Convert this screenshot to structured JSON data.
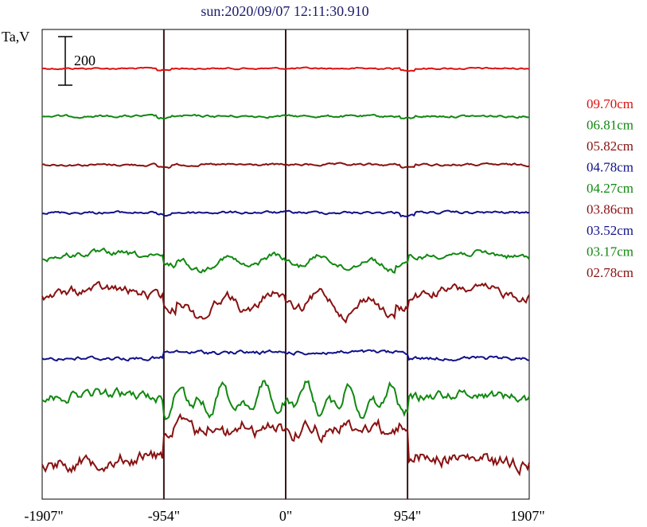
{
  "chart_data": {
    "type": "line",
    "title": "sun:2020/09/07 12:11:30.910",
    "ylabel": "Ta,V",
    "scale_bar_label": "200",
    "x_ticks": [
      "-1907\"",
      "-954\"",
      "0\"",
      "954\"",
      "1907\""
    ],
    "x_tick_values": [
      -1907,
      -954,
      0,
      954,
      1907
    ],
    "xlim": [
      -1907,
      1907
    ],
    "vertical_lines_at": [
      -954,
      0,
      954
    ],
    "grid": false,
    "legend_position": "right",
    "series": [
      {
        "name": "09.70cm",
        "color": "#dd1111",
        "baseline": 86,
        "kind": "flat",
        "amp": 5
      },
      {
        "name": "06.81cm",
        "color": "#118811",
        "baseline": 146,
        "kind": "flat",
        "amp": 7
      },
      {
        "name": "05.82cm",
        "color": "#881111",
        "baseline": 207,
        "kind": "flat",
        "amp": 7
      },
      {
        "name": "04.78cm",
        "color": "#111188",
        "baseline": 267,
        "kind": "flat",
        "amp": 8
      },
      {
        "name": "04.27cm",
        "color": "#118811",
        "baseline": 327,
        "kind": "dip",
        "amp": 18
      },
      {
        "name": "03.86cm",
        "color": "#881111",
        "baseline": 378,
        "kind": "dip",
        "amp": 30
      },
      {
        "name": "03.52cm",
        "color": "#111188",
        "baseline": 450,
        "kind": "bump",
        "amp": 12
      },
      {
        "name": "03.17cm",
        "color": "#118811",
        "baseline": 503,
        "kind": "noisy",
        "amp": 30
      },
      {
        "name": "02.78cm",
        "color": "#881111",
        "baseline": 583,
        "kind": "plateau",
        "amp": 45
      }
    ]
  }
}
